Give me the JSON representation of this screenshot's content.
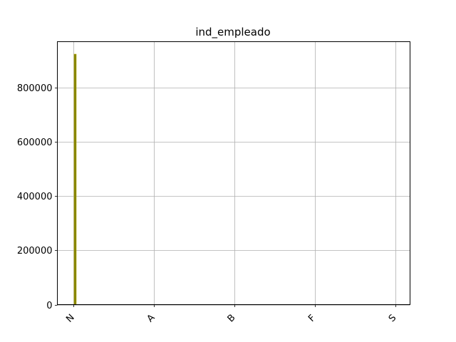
{
  "chart_data": {
    "type": "bar",
    "title": "ind_empleado",
    "categories": [
      "N",
      "A",
      "B",
      "F",
      "S"
    ],
    "values": [
      924000,
      0,
      0,
      0,
      0
    ],
    "ylim": [
      0,
      970000
    ],
    "yticks": [
      0,
      200000,
      400000,
      600000,
      800000
    ],
    "ytick_labels": [
      "0",
      "200000",
      "400000",
      "600000",
      "800000"
    ],
    "grid": true,
    "bar_color": "#808000",
    "bar_edge_color": "#b5a800",
    "xlabel": "",
    "ylabel": ""
  }
}
